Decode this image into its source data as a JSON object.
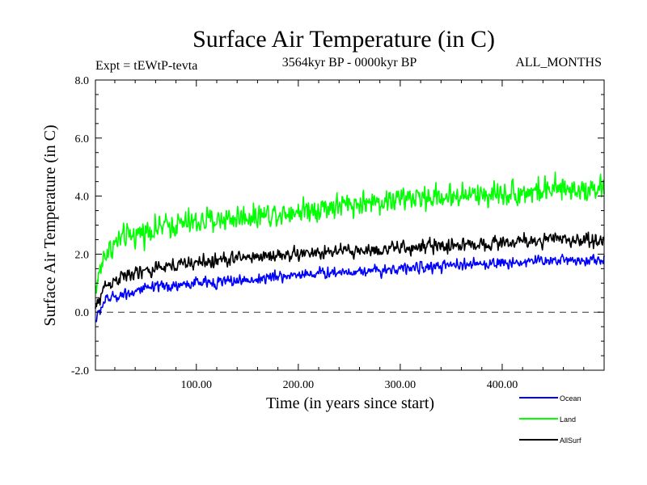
{
  "chart_data": {
    "type": "line",
    "title": "Surface Air Temperature (in C)",
    "subtitle_left": "Expt = tEWtP-tevta",
    "subtitle_center": "3564kyr BP - 0000kyr BP",
    "subtitle_right": "ALL_MONTHS",
    "xlabel": "Time (in years since start)",
    "ylabel": "Surface Air Temperature (in C)",
    "xlim": [
      1,
      500
    ],
    "ylim": [
      -2.0,
      8.0
    ],
    "x_ticks": [
      100,
      200,
      300,
      400
    ],
    "x_tick_labels": [
      "100.00",
      "200.00",
      "300.00",
      "400.00"
    ],
    "y_ticks": [
      -2,
      0,
      2,
      4,
      6,
      8
    ],
    "y_tick_labels": [
      "-2.0",
      "0.0",
      "2.0",
      "4.0",
      "6.0",
      "8.0"
    ],
    "reference_line": {
      "y": 0.0,
      "style": "dashed"
    },
    "x": [
      1,
      10,
      25,
      50,
      75,
      100,
      150,
      200,
      250,
      300,
      350,
      400,
      450,
      500
    ],
    "series": [
      {
        "name": "Land",
        "color": "#00ff00",
        "noise": 0.5,
        "values": [
          0.8,
          2.0,
          2.5,
          2.8,
          3.0,
          3.1,
          3.3,
          3.5,
          3.7,
          3.9,
          4.0,
          4.1,
          4.2,
          4.3
        ]
      },
      {
        "name": "AllSurf",
        "color": "#000000",
        "noise": 0.28,
        "values": [
          0.1,
          0.9,
          1.2,
          1.4,
          1.6,
          1.7,
          1.9,
          2.0,
          2.1,
          2.2,
          2.3,
          2.4,
          2.5,
          2.5
        ]
      },
      {
        "name": "Ocean",
        "color": "#0000ff",
        "noise": 0.22,
        "values": [
          -0.3,
          0.4,
          0.6,
          0.8,
          0.9,
          1.0,
          1.1,
          1.3,
          1.4,
          1.5,
          1.6,
          1.7,
          1.8,
          1.8
        ]
      }
    ],
    "legend": [
      {
        "name": "Ocean",
        "color": "#0000ff"
      },
      {
        "name": "Land",
        "color": "#00ff00"
      },
      {
        "name": "AllSurf",
        "color": "#000000"
      }
    ],
    "legend_position": "bottom-right"
  }
}
